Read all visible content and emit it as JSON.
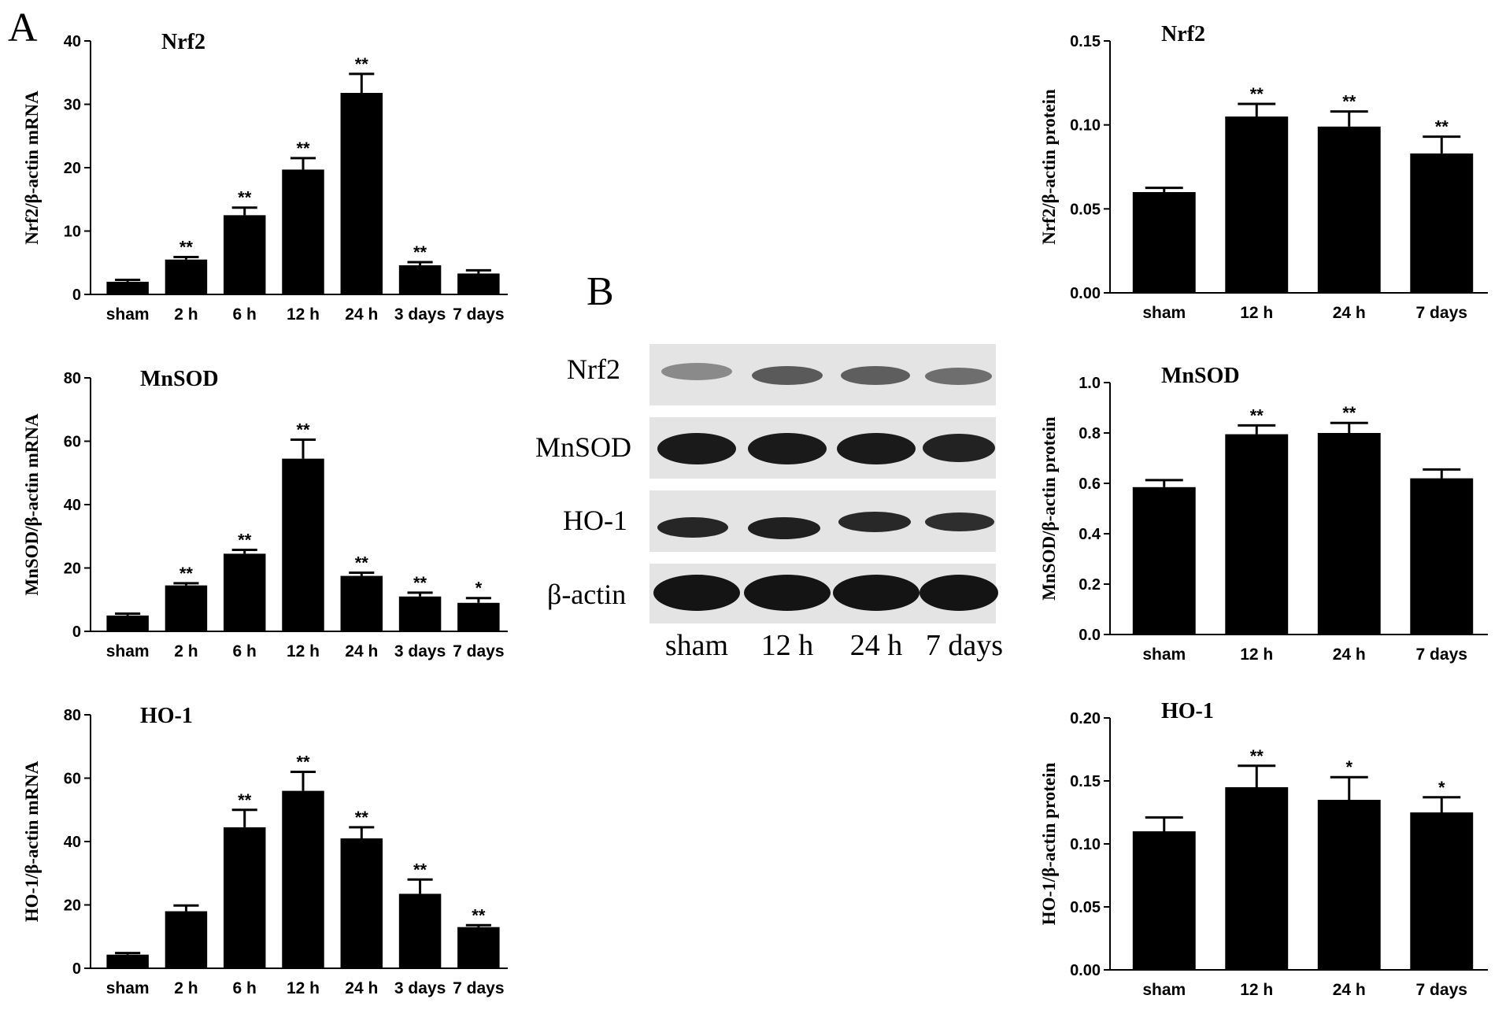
{
  "panel_labels": {
    "a": "A",
    "b": "B"
  },
  "chart_data": [
    {
      "panel": "A",
      "type": "bar",
      "title": "Nrf2",
      "xlabel": "",
      "ylabel": "Nrf2/β-actin mRNA",
      "categories": [
        "sham",
        "2 h",
        "6 h",
        "12 h",
        "24 h",
        "3 days",
        "7 days"
      ],
      "values": [
        2.0,
        5.5,
        12.5,
        19.7,
        31.8,
        4.6,
        3.3
      ],
      "errors": [
        0.3,
        0.4,
        1.2,
        1.8,
        3.0,
        0.5,
        0.5
      ],
      "significance": [
        "",
        "**",
        "**",
        "**",
        "**",
        "**",
        ""
      ],
      "ylim": [
        0,
        40
      ],
      "yticks": [
        "0",
        "10",
        "20",
        "30",
        "40"
      ],
      "grid": false
    },
    {
      "panel": "A",
      "type": "bar",
      "title": "MnSOD",
      "xlabel": "",
      "ylabel": "MnSOD/β-actin mRNA",
      "categories": [
        "sham",
        "2 h",
        "6 h",
        "12 h",
        "24 h",
        "3 days",
        "7 days"
      ],
      "values": [
        5.0,
        14.5,
        24.5,
        54.5,
        17.5,
        11.0,
        9.0
      ],
      "errors": [
        0.6,
        0.7,
        1.2,
        6.0,
        1.0,
        1.2,
        1.5
      ],
      "significance": [
        "",
        "**",
        "**",
        "**",
        "**",
        "**",
        "*"
      ],
      "ylim": [
        0,
        80
      ],
      "yticks": [
        "0",
        "20",
        "40",
        "60",
        "80"
      ],
      "grid": false
    },
    {
      "panel": "A",
      "type": "bar",
      "title": "HO-1",
      "xlabel": "",
      "ylabel": "HO-1/β-actin mRNA",
      "categories": [
        "sham",
        "2 h",
        "6 h",
        "12 h",
        "24 h",
        "3 days",
        "7 days"
      ],
      "values": [
        4.3,
        18.0,
        44.5,
        56.0,
        41.0,
        23.5,
        13.0
      ],
      "errors": [
        0.5,
        1.8,
        5.5,
        6.0,
        3.5,
        4.5,
        0.6
      ],
      "significance": [
        "",
        "",
        "**",
        "**",
        "**",
        "**",
        "**"
      ],
      "ylim": [
        0,
        80
      ],
      "yticks": [
        "0",
        "20",
        "40",
        "60",
        "80"
      ],
      "grid": false
    },
    {
      "panel": "B",
      "type": "bar",
      "title": "Nrf2",
      "xlabel": "",
      "ylabel": "Nrf2/β-actin protein",
      "categories": [
        "sham",
        "12 h",
        "24 h",
        "7 days"
      ],
      "values": [
        0.06,
        0.105,
        0.099,
        0.083
      ],
      "errors": [
        0.0025,
        0.0075,
        0.009,
        0.01
      ],
      "significance": [
        "",
        "**",
        "**",
        "**"
      ],
      "ylim": [
        0,
        0.15
      ],
      "yticks": [
        "0.00",
        "0.05",
        "0.10",
        "0.15"
      ],
      "grid": false
    },
    {
      "panel": "B",
      "type": "bar",
      "title": "MnSOD",
      "xlabel": "",
      "ylabel": "MnSOD/β-actin protein",
      "categories": [
        "sham",
        "12 h",
        "24 h",
        "7 days"
      ],
      "values": [
        0.585,
        0.795,
        0.8,
        0.62
      ],
      "errors": [
        0.028,
        0.035,
        0.04,
        0.035
      ],
      "significance": [
        "",
        "**",
        "**",
        ""
      ],
      "ylim": [
        0,
        1.0
      ],
      "yticks": [
        "0.0",
        "0.2",
        "0.4",
        "0.6",
        "0.8",
        "1.0"
      ],
      "grid": false
    },
    {
      "panel": "B",
      "type": "bar",
      "title": "HO-1",
      "xlabel": "",
      "ylabel": "HO-1/β-actin protein",
      "categories": [
        "sham",
        "12 h",
        "24 h",
        "7 days"
      ],
      "values": [
        0.11,
        0.145,
        0.135,
        0.125
      ],
      "errors": [
        0.011,
        0.017,
        0.018,
        0.012
      ],
      "significance": [
        "",
        "**",
        "*",
        "*"
      ],
      "ylim": [
        0,
        0.2
      ],
      "yticks": [
        "0.00",
        "0.05",
        "0.10",
        "0.15",
        "0.20"
      ],
      "grid": false
    }
  ],
  "western_blot": {
    "rows": [
      "Nrf2",
      "MnSOD",
      "HO-1",
      "β-actin"
    ],
    "lanes": [
      "sham",
      "12 h",
      "24 h",
      "7 days"
    ]
  },
  "colors": {
    "bar": "#000000",
    "axis": "#000000",
    "blot_background": "#e4e4e4",
    "band": "#1a1a1a"
  }
}
